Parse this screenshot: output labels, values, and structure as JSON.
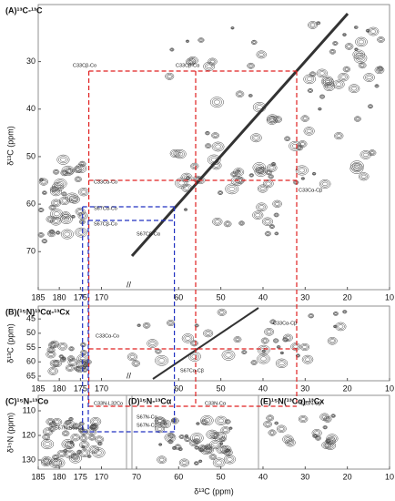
{
  "chart_data": [
    {
      "type": "contour",
      "title": "(A)¹³C-¹³C",
      "ylabel": "δ¹³C (ppm)",
      "xlim": [
        185,
        10
      ],
      "xbreak": [
        164,
        71
      ],
      "ylim": [
        18,
        78
      ],
      "yticks": [
        30,
        40,
        50,
        60,
        70
      ],
      "xticks": [
        185,
        180,
        175,
        170,
        60,
        50,
        40,
        30,
        20,
        10
      ],
      "annotations": [
        "C33Cβ-Co",
        "C33Cβ-Cα",
        "C33Cα-Co",
        "C33Cα-Cβ",
        "S67Cα-Co",
        "S67Cβ-Co",
        "S67Cβ-Cα"
      ]
    },
    {
      "type": "contour",
      "title": "(B)(¹⁵N)¹³Cα-¹³Cx",
      "ylabel": "δ¹³C (ppm)",
      "xlim": [
        185,
        10
      ],
      "xbreak": [
        164,
        71
      ],
      "ylim": [
        40.5,
        66.6
      ],
      "yticks": [
        45,
        50,
        55,
        60,
        65
      ],
      "xticks": [
        185,
        180,
        175,
        170,
        60,
        50,
        40,
        30,
        20,
        10
      ],
      "annotations": [
        "C33Cα-Co",
        "C33Cα-Cβ",
        "S67Cα-Cβ"
      ]
    },
    {
      "type": "contour",
      "titles": [
        "(C)¹⁵N-¹³Co",
        "(D)¹⁵N-¹³Cα",
        "(E)¹⁵N(¹³Cα)-¹³Cx"
      ],
      "ylabel": "δ¹⁵N (ppm)",
      "xlabel": "δ¹³C (ppm)",
      "xlim": [
        185,
        10
      ],
      "xbreak": [
        164,
        71
      ],
      "ylim": [
        103.7,
        133.7
      ],
      "yticks": [
        110,
        120,
        130
      ],
      "xticks": [
        185,
        180,
        175,
        170,
        70,
        60,
        50,
        40,
        30,
        20,
        10
      ],
      "annotations": [
        "C33N-L32Co",
        "S67N-S66Co",
        "S67N-Cα",
        "S67N-Cβ",
        "C33N-Cα",
        "C33N-Cβ"
      ]
    }
  ]
}
